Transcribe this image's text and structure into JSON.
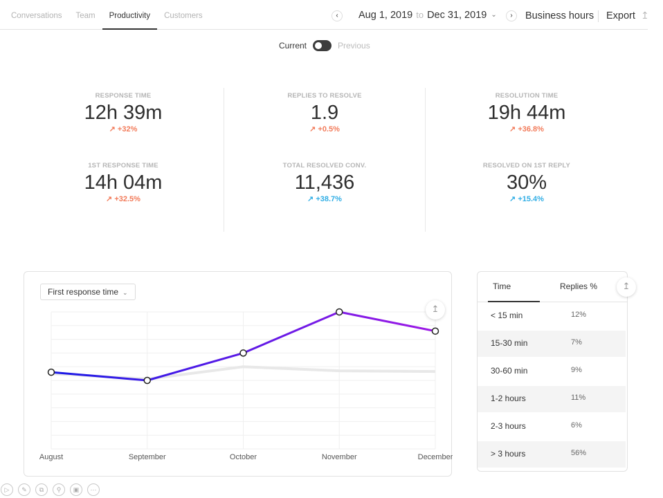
{
  "tabs": [
    "Conversations",
    "Team",
    "Productivity",
    "Customers"
  ],
  "active_tab": "Productivity",
  "daterange": {
    "from": "Aug 1, 2019",
    "to_word": "to",
    "to": "Dec 31, 2019"
  },
  "header": {
    "business_hours": "Business hours",
    "export": "Export"
  },
  "toggle": {
    "current": "Current",
    "previous": "Previous"
  },
  "metrics": [
    {
      "label": "RESPONSE TIME",
      "value": "12h 39m",
      "delta": "+32%",
      "trend": "red"
    },
    {
      "label": "1ST RESPONSE TIME",
      "value": "14h 04m",
      "delta": "+32.5%",
      "trend": "red"
    },
    {
      "label": "REPLIES TO RESOLVE",
      "value": "1.9",
      "delta": "+0.5%",
      "trend": "red"
    },
    {
      "label": "TOTAL RESOLVED CONV.",
      "value": "11,436",
      "delta": "+38.7%",
      "trend": "blue"
    },
    {
      "label": "RESOLUTION TIME",
      "value": "19h 44m",
      "delta": "+36.8%",
      "trend": "red"
    },
    {
      "label": "RESOLVED ON 1ST REPLY",
      "value": "30%",
      "delta": "+15.4%",
      "trend": "blue"
    }
  ],
  "chart": {
    "selector_label": "First response time"
  },
  "chart_data": {
    "type": "line",
    "categories": [
      "August",
      "September",
      "October",
      "November",
      "December"
    ],
    "ylim": [
      0,
      10
    ],
    "grid": true,
    "series": [
      {
        "values": [
          5.6,
          5.0,
          7.0,
          10.0,
          8.6
        ],
        "color_start": "#1a1ae6",
        "color_end": "#9f1ae6"
      },
      {
        "values": [
          5.5,
          5.1,
          6.0,
          5.7,
          5.65
        ],
        "color": "#e8e8e8"
      }
    ]
  },
  "table": {
    "headers": [
      "Time",
      "Replies %"
    ],
    "rows": [
      [
        "< 15 min",
        "12%"
      ],
      [
        "15-30 min",
        "7%"
      ],
      [
        "30-60 min",
        "9%"
      ],
      [
        "1-2 hours",
        "11%"
      ],
      [
        "2-3 hours",
        "6%"
      ],
      [
        "> 3 hours",
        "56%"
      ]
    ]
  },
  "icons": {
    "prev": "chevron-left-icon",
    "next": "chevron-right-icon",
    "export": "upload-icon",
    "tools": [
      "play-icon",
      "pen-icon",
      "copy-icon",
      "search-icon",
      "screen-icon",
      "more-icon"
    ]
  }
}
